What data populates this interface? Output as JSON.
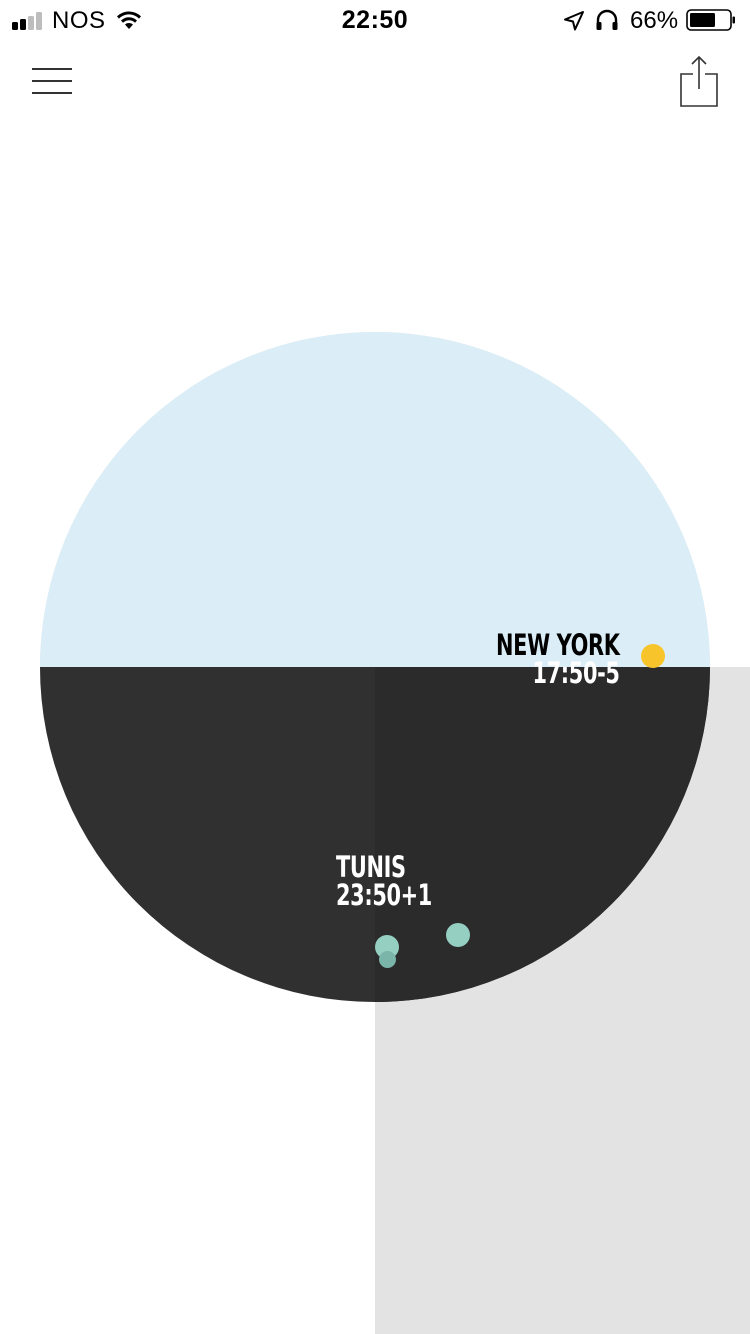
{
  "status_bar": {
    "carrier": "NOS",
    "time": "22:50",
    "battery_percent": "66%",
    "signal_bars_active": 2,
    "signal_bars_total": 4,
    "battery_level": 0.66,
    "icons": [
      "signal-icon",
      "wifi-icon",
      "location-arrow-icon",
      "headphones-icon",
      "battery-icon"
    ]
  },
  "nav": {
    "menu_icon": "hamburger-menu-icon",
    "share_icon": "share-icon"
  },
  "globe": {
    "colors": {
      "day": "#dbeef7",
      "night": "#303030",
      "night_alt": "#2b2b2b",
      "panel": "#e3e3e3"
    },
    "cities": [
      {
        "name": "NEW YORK",
        "time": "17:50-5"
      },
      {
        "name": "TUNIS",
        "time": "23:50+1"
      }
    ],
    "markers": [
      {
        "name": "sun-marker",
        "color": "#f7c52b"
      },
      {
        "name": "location-marker",
        "color": "#94cfc2"
      },
      {
        "name": "location-marker",
        "color": "#94cfc2"
      },
      {
        "name": "location-marker",
        "color": "#7bb5a9"
      }
    ]
  }
}
